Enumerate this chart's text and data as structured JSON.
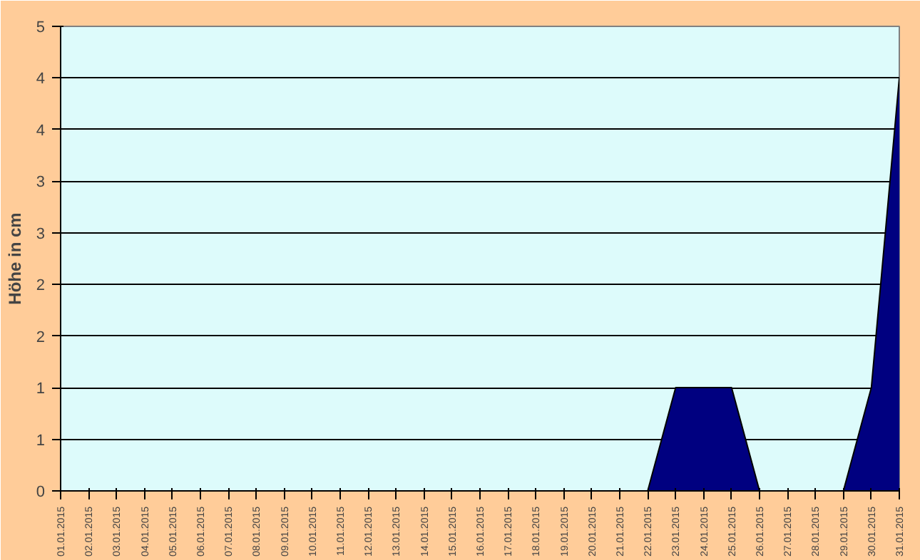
{
  "chart_data": {
    "type": "area",
    "ylabel": "Höhe in cm",
    "categories": [
      "01.01.2015",
      "02.01.2015",
      "03.01.2015",
      "04.01.2015",
      "05.01.2015",
      "06.01.2015",
      "07.01.2015",
      "08.01.2015",
      "09.01.2015",
      "10.01.2015",
      "11.01.2015",
      "12.01.2015",
      "13.01.2015",
      "14.01.2015",
      "15.01.2015",
      "16.01.2015",
      "17.01.2015",
      "18.01.2015",
      "19.01.2015",
      "20.01.2015",
      "21.01.2015",
      "22.01.2015",
      "23.01.2015",
      "24.01.2015",
      "25.01.2015",
      "26.01.2015",
      "27.01.2015",
      "28.01.2015",
      "29.01.2015",
      "30.01.2015",
      "31.01.2015"
    ],
    "values": [
      0,
      0,
      0,
      0,
      0,
      0,
      0,
      0,
      0,
      0,
      0,
      0,
      0,
      0,
      0,
      0,
      0,
      0,
      0,
      0,
      0,
      0,
      1,
      1,
      1,
      0,
      0,
      0,
      0,
      1,
      4
    ],
    "color": "#000080",
    "ylim": [
      0,
      4.5
    ],
    "yticks": [
      0,
      {
        "value": 0.5,
        "label": "1"
      },
      1,
      {
        "value": 1.5,
        "label": "2"
      },
      2,
      {
        "value": 2.5,
        "label": "3"
      },
      3,
      {
        "value": 3.5,
        "label": "4"
      },
      4,
      {
        "value": 4.5,
        "label": "5"
      }
    ],
    "grid": "y"
  }
}
